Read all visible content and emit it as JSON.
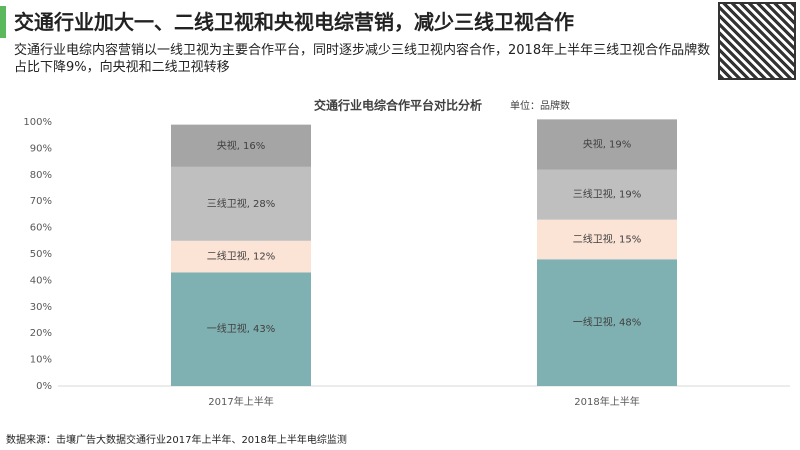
{
  "header": {
    "title": "交通行业加大一、二线卫视和央视电综营销，减少三线卫视合作",
    "subtitle": "交通行业电综内容营销以一线卫视为主要合作平台，同时逐步减少三线卫视内容合作，2018年上半年三线卫视合作品牌数占比下降9%，向央视和二线卫视转移"
  },
  "chart_data": {
    "type": "stacked_bar",
    "title": "交通行业电综合作平台对比分析",
    "unit": "单位：品牌数",
    "categories": [
      "2017年上半年",
      "2018年上半年"
    ],
    "series": [
      {
        "color": "#7fb0b2",
        "values": [
          43,
          48
        ],
        "value_labels": [
          "一线卫视, 43%",
          "一线卫视, 48%"
        ]
      },
      {
        "color": "#fbe3d6",
        "values": [
          12,
          15
        ],
        "value_labels": [
          "二线卫视, 12%",
          "二线卫视, 15%"
        ]
      },
      {
        "color": "#bfbfbf",
        "values": [
          28,
          19
        ],
        "value_labels": [
          "三线卫视, 28%",
          "三线卫视, 19%"
        ]
      },
      {
        "color": "#a5a5a5",
        "values": [
          16,
          19
        ],
        "value_labels": [
          "央视, 16%",
          "央视, 19%"
        ]
      }
    ],
    "ylim": [
      0,
      100
    ],
    "yticks": [
      {
        "value": 0,
        "label": "0%"
      },
      {
        "value": 10,
        "label": "10%"
      },
      {
        "value": 20,
        "label": "20%"
      },
      {
        "value": 30,
        "label": "30%"
      },
      {
        "value": 40,
        "label": "40%"
      },
      {
        "value": 50,
        "label": "50%"
      },
      {
        "value": 60,
        "label": "60%"
      },
      {
        "value": 70,
        "label": "70%"
      },
      {
        "value": 80,
        "label": "80%"
      },
      {
        "value": 90,
        "label": "90%"
      },
      {
        "value": 100,
        "label": "100%"
      }
    ]
  },
  "footer": {
    "source": "数据来源：击壤广告大数据交通行业2017年上半年、2018年上半年电综监测"
  }
}
